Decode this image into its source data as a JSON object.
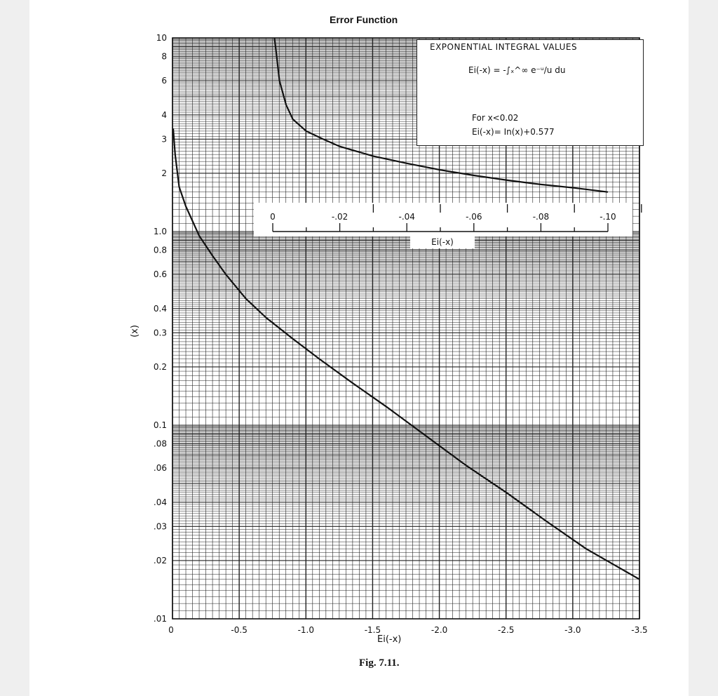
{
  "chart_data": [
    {
      "type": "line",
      "title": "Error Function",
      "xlabel": "Ei(-x)",
      "ylabel": "(x)",
      "xlim": [
        0,
        -3.5
      ],
      "ylim": [
        0.01,
        10
      ],
      "yscale": "log",
      "grid": true,
      "x_ticks": [
        "0",
        "-0.5",
        "-1.0",
        "-1.5",
        "-2.0",
        "-2.5",
        "-3.0",
        "-3.5"
      ],
      "y_ticks": [
        "10",
        "8",
        "6",
        "4",
        "3",
        "2",
        "1.0",
        "0.8",
        "0.6",
        "0.4",
        "0.3",
        "0.2",
        "0.1",
        ".08",
        ".06",
        ".04",
        ".03",
        ".02",
        ".01"
      ],
      "series": [
        {
          "x": [
            -0.005,
            -0.02,
            -0.05,
            -0.1,
            -0.2,
            -0.3,
            -0.4,
            -0.55,
            -0.7,
            -0.9,
            -1.1,
            -1.35,
            -1.6,
            -1.9,
            -2.2,
            -2.5,
            -2.8,
            -3.1,
            -3.5
          ],
          "y": [
            3.4,
            2.5,
            1.7,
            1.35,
            0.95,
            0.75,
            0.6,
            0.45,
            0.36,
            0.28,
            0.22,
            0.165,
            0.125,
            0.088,
            0.062,
            0.045,
            0.032,
            0.023,
            0.016
          ]
        }
      ]
    },
    {
      "type": "line",
      "xlabel": "Ei(-x)",
      "xlim": [
        0,
        -0.1
      ],
      "x_ticks": [
        "0",
        "-.02",
        "-.04",
        "-.06",
        "-.08",
        "-.10"
      ],
      "yscale": "log",
      "series": [
        {
          "x": [
            -0.0005,
            -0.001,
            -0.002,
            -0.004,
            -0.006,
            -0.01,
            -0.015,
            -0.02,
            -0.03,
            -0.04,
            -0.05,
            -0.06,
            -0.07,
            -0.08,
            -0.09,
            -0.1
          ],
          "y": [
            10,
            8.5,
            6,
            4.5,
            3.8,
            3.3,
            3.0,
            2.75,
            2.45,
            2.25,
            2.08,
            1.95,
            1.84,
            1.75,
            1.68,
            1.6
          ]
        }
      ]
    }
  ],
  "legend": {
    "title": "EXPONENTIAL  INTEGRAL  VALUES",
    "formula": "Ei(-x) = -∫ₓ^∞ e⁻ᵘ/u du",
    "condition": "For  x<0.02",
    "approximation": "Ei(-x)= In(x)+0.577"
  },
  "figure_caption": "Fig. 7.11."
}
